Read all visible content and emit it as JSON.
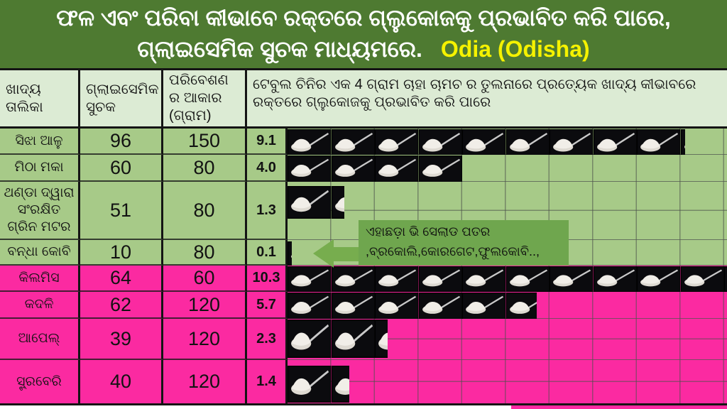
{
  "title": {
    "line1": "ଫଳ ଏବଂ ପରିବା କୀଭାବେ ରକ୍ତରେ ଗ୍ଲୁକୋଜକୁ ପ୍ରଭାବିତ କରି ପାରେ,",
    "line2": "ଗ୍ଲାଇସେମିକ ସୁଚକ ମାଧ୍ୟମରେ.",
    "language_tag": "Odia (Odisha)"
  },
  "table": {
    "headers": {
      "food": "ଖାଦ୍ୟ ତାଲିକା",
      "gi": "ଗ୍ଲାଇସେମିକ ସୁଚକ",
      "serving": "ପରିବେଶଣ ର ଆକାର (ଗ୍ରାମ)",
      "chart": "ଟେବୁଲ ଚିନିର ଏକ  4 ଗ୍ରାମ ଚାହା ଚାମଚ ର ତୁଲନାରେ ପ୍ରତ୍ୟେକ ଖାଦ୍ୟ କୀଭାବରେ ରକ୍ତରେ ଗ୍ଲୁକୋଜକୁ ପ୍ରଭାବିତ କରି  ପାରେ"
    },
    "rows": [
      {
        "name": "ସିଝା ଆଳୁ",
        "gi": "96",
        "serving": "150",
        "spoons": 9.1,
        "spoons_label": "9.1",
        "group": "veg"
      },
      {
        "name": "ମିଠା ମକା",
        "gi": "60",
        "serving": "80",
        "spoons": 4.0,
        "spoons_label": "4.0",
        "group": "veg"
      },
      {
        "name": "ଥଣ୍ଡା ଦ୍ୱାରା ସଂରକ୍ଷିତ ଗ୍ରିନ ମଟର",
        "gi": "51",
        "serving": "80",
        "spoons": 1.3,
        "spoons_label": "1.3",
        "group": "veg"
      },
      {
        "name": "ବନ୍ଧା କୋବି",
        "gi": "10",
        "serving": "80",
        "spoons": 0.1,
        "spoons_label": "0.1",
        "group": "veg"
      },
      {
        "name": "କିଲମିସ",
        "gi": "64",
        "serving": "60",
        "spoons": 10.3,
        "spoons_label": "10.3",
        "group": "fruit"
      },
      {
        "name": "କଦଳି",
        "gi": "62",
        "serving": "120",
        "spoons": 5.7,
        "spoons_label": "5.7",
        "group": "fruit"
      },
      {
        "name": "ଆପେଲ୍",
        "gi": "39",
        "serving": "120",
        "spoons": 2.3,
        "spoons_label": "2.3",
        "group": "fruit"
      },
      {
        "name": "ସ୍ଟ୍ରବେରି",
        "gi": "40",
        "serving": "120",
        "spoons": 1.4,
        "spoons_label": "1.4",
        "group": "fruit"
      }
    ]
  },
  "annotation": {
    "line1": "ଏହାଛଡ଼ା ଭି ସେଲାଡ ପତର",
    "line2": ",ବ୍ରକୋଲି,କୋରଗେଟ,ଫୁଲକୋବି..,"
  },
  "icons": {
    "spoon": "sugar-spoon-icon"
  },
  "colors": {
    "title_bg": "#4e7a31",
    "header_bg": "#dcebd4",
    "vegetable_row_bg": "#a7ca88",
    "fruit_row_bg": "#fb2aa1",
    "annotation_bg": "#6fa64e",
    "language_tag_text": "#f5f200",
    "spoon_tile_bg": "#0b0b0e"
  },
  "chart_data": {
    "type": "bar",
    "subtype": "pictograph (teaspoons of sugar)",
    "title": "ଫଳ ଏବଂ ପରିବା କୀଭାବେ ରକ୍ତରେ ଗ୍ଲୁକୋଜକୁ ପ୍ରଭାବିତ କରି ପାରେ, ଗ୍ଲାଇସେମିକ ସୁଚକ ମାଧ୍ୟମରେ.",
    "unit_note": "1 spoon icon = 1 teaspoon (4 g) table sugar",
    "categories": [
      "ସିଝା ଆଳୁ",
      "ମିଠା ମକା",
      "ଥଣ୍ଡା ଦ୍ୱାରା ସଂରକ୍ଷିତ ଗ୍ରିନ ମଟର",
      "ବନ୍ଧା କୋବି",
      "କିଲମିସ",
      "କଦଳି",
      "ଆପେଲ୍",
      "ସ୍ଟ୍ରବେରି"
    ],
    "series": [
      {
        "name": "ଗ୍ଲାଇସେମିକ ସୁଚକ",
        "values": [
          96,
          60,
          51,
          10,
          64,
          62,
          39,
          40
        ]
      },
      {
        "name": "ପରିବେଶଣ ର ଆକାର (ଗ୍ରାମ)",
        "values": [
          150,
          80,
          80,
          80,
          60,
          120,
          120,
          120
        ]
      },
      {
        "name": "ଚିନି ଚାମଚ ସଂଖ୍ୟା",
        "values": [
          9.1,
          4.0,
          1.3,
          0.1,
          10.3,
          5.7,
          2.3,
          1.4
        ]
      }
    ],
    "groups": [
      "vegetables",
      "vegetables",
      "vegetables",
      "vegetables",
      "fruits",
      "fruits",
      "fruits",
      "fruits"
    ],
    "xlim": [
      0,
      10.5
    ],
    "grid": true,
    "legend_position": "none"
  }
}
